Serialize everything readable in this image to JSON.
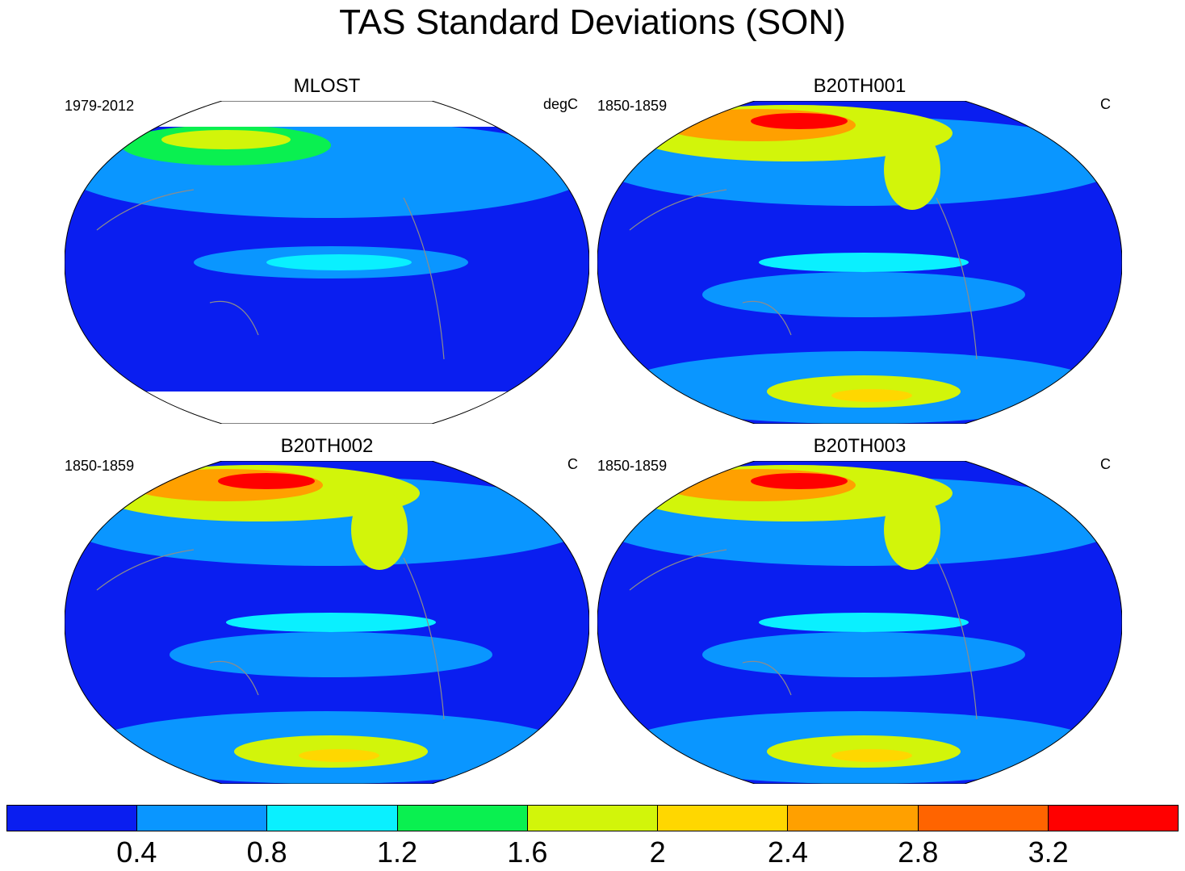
{
  "title": "TAS Standard Deviations (SON)",
  "panels": [
    {
      "title": "MLOST",
      "left_label": "1979-2012",
      "right_label": "degC",
      "style": "obs"
    },
    {
      "title": "B20TH001",
      "left_label": "1850-1859",
      "right_label": "C",
      "style": "model"
    },
    {
      "title": "B20TH002",
      "left_label": "1850-1859",
      "right_label": "C",
      "style": "model"
    },
    {
      "title": "B20TH003",
      "left_label": "1850-1859",
      "right_label": "C",
      "style": "model"
    }
  ],
  "colorbar": {
    "colors": [
      "#0a1ef0",
      "#0a96ff",
      "#0af0ff",
      "#0af050",
      "#d2f50a",
      "#ffd700",
      "#ffa000",
      "#ff6400",
      "#ff0000"
    ],
    "labels": [
      "0.4",
      "0.8",
      "1.2",
      "1.6",
      "2",
      "2.4",
      "2.8",
      "3.2"
    ]
  }
}
